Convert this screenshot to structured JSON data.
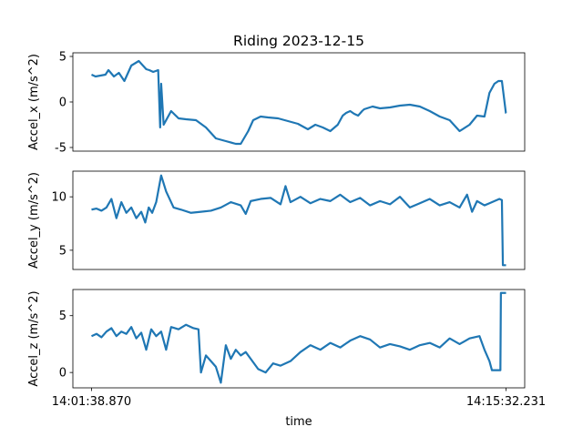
{
  "chart_data": {
    "type": "line",
    "title": "Riding  2023-12-15",
    "xlabel": "time",
    "x_tick_labels": [
      "14:01:38.870",
      "14:15:32.231"
    ],
    "x_range": [
      "14:01:38.870",
      "14:15:32.231"
    ],
    "grid": false,
    "line_color": "#1f77b4",
    "panels": [
      {
        "ylabel": "Accel_x  (m/s^2)",
        "ylim": [
          -5.4,
          5.4
        ],
        "yticks": [
          -5,
          0,
          5
        ],
        "x": [
          0,
          8,
          18,
          28,
          34,
          45,
          55,
          66,
          80,
          95,
          110,
          116,
          124,
          134,
          138,
          140,
          145,
          160,
          175,
          190,
          210,
          230,
          250,
          270,
          290,
          300,
          315,
          325,
          340,
          355,
          375,
          395,
          415,
          435,
          450,
          465,
          480,
          495,
          505,
          512,
          520,
          528,
          536,
          544,
          548,
          565,
          580,
          600,
          620,
          640,
          660,
          680,
          700,
          720,
          740,
          760,
          775,
          790,
          800,
          810,
          818,
          825,
          833,
          833.4
        ],
        "y": [
          3.0,
          2.8,
          2.9,
          3.0,
          3.5,
          2.8,
          3.2,
          2.3,
          4.0,
          4.5,
          3.6,
          3.5,
          3.3,
          3.5,
          -2.8,
          2.0,
          -2.5,
          -1.0,
          -1.8,
          -1.9,
          -2.0,
          -2.8,
          -4.0,
          -4.3,
          -4.6,
          -4.6,
          -3.2,
          -2.0,
          -1.6,
          -1.7,
          -1.8,
          -2.1,
          -2.4,
          -3.0,
          -2.5,
          -2.8,
          -3.2,
          -2.5,
          -1.5,
          -1.2,
          -1.0,
          -1.3,
          -1.5,
          -1.0,
          -0.8,
          -0.5,
          -0.7,
          -0.6,
          -0.4,
          -0.3,
          -0.5,
          -1.0,
          -1.6,
          -2.0,
          -3.2,
          -2.5,
          -1.5,
          -1.6,
          1.0,
          2.0,
          2.3,
          2.3,
          -1.2,
          -1.2
        ]
      },
      {
        "ylabel": "Accel_y  (m/s^2)",
        "ylim": [
          3.2,
          12.4
        ],
        "yticks": [
          5,
          10
        ],
        "x": [
          0,
          10,
          20,
          30,
          40,
          50,
          60,
          70,
          80,
          90,
          100,
          108,
          115,
          122,
          130,
          140,
          150,
          165,
          180,
          200,
          220,
          240,
          260,
          280,
          300,
          310,
          320,
          340,
          360,
          380,
          390,
          400,
          420,
          440,
          460,
          480,
          500,
          520,
          540,
          560,
          580,
          600,
          620,
          640,
          660,
          680,
          700,
          720,
          740,
          755,
          765,
          775,
          790,
          800,
          810,
          820,
          825,
          827,
          833.4
        ],
        "y": [
          8.8,
          8.9,
          8.7,
          9.0,
          9.8,
          8.0,
          9.5,
          8.5,
          9.0,
          8.0,
          8.6,
          7.6,
          9.0,
          8.5,
          9.5,
          12.0,
          10.5,
          9.0,
          8.8,
          8.5,
          8.6,
          8.7,
          9.0,
          9.5,
          9.2,
          8.4,
          9.6,
          9.8,
          9.9,
          9.3,
          11.0,
          9.5,
          10.0,
          9.4,
          9.8,
          9.6,
          10.2,
          9.5,
          9.9,
          9.2,
          9.6,
          9.3,
          10.0,
          9.0,
          9.4,
          9.8,
          9.2,
          9.5,
          9.0,
          10.2,
          8.6,
          9.6,
          9.2,
          9.4,
          9.6,
          9.8,
          9.7,
          3.6,
          3.6
        ]
      },
      {
        "ylabel": "Accel_z  (m/s^2)",
        "ylim": [
          -1.35,
          7.3
        ],
        "yticks": [
          0,
          5
        ],
        "x": [
          0,
          10,
          20,
          30,
          40,
          50,
          60,
          70,
          80,
          90,
          100,
          110,
          120,
          130,
          140,
          150,
          160,
          175,
          190,
          205,
          215,
          220,
          230,
          240,
          250,
          260,
          270,
          280,
          290,
          300,
          310,
          320,
          335,
          350,
          365,
          380,
          400,
          420,
          440,
          460,
          480,
          500,
          520,
          540,
          560,
          580,
          600,
          620,
          640,
          660,
          680,
          700,
          720,
          740,
          760,
          780,
          790,
          800,
          805,
          810,
          815,
          822,
          823,
          833.4
        ],
        "y": [
          3.2,
          3.4,
          3.1,
          3.6,
          3.9,
          3.2,
          3.6,
          3.4,
          4.0,
          3.0,
          3.5,
          2.0,
          3.8,
          3.2,
          3.6,
          2.0,
          4.0,
          3.8,
          4.2,
          3.9,
          3.8,
          0.0,
          1.5,
          1.0,
          0.5,
          -0.9,
          2.4,
          1.2,
          2.0,
          1.5,
          1.8,
          1.2,
          0.3,
          0.0,
          0.8,
          0.6,
          1.0,
          1.8,
          2.4,
          2.0,
          2.6,
          2.2,
          2.8,
          3.2,
          2.9,
          2.2,
          2.5,
          2.3,
          2.0,
          2.4,
          2.6,
          2.2,
          3.0,
          2.5,
          3.0,
          3.2,
          2.0,
          1.0,
          0.2,
          0.2,
          0.2,
          0.2,
          7.0,
          7.0
        ]
      }
    ]
  }
}
